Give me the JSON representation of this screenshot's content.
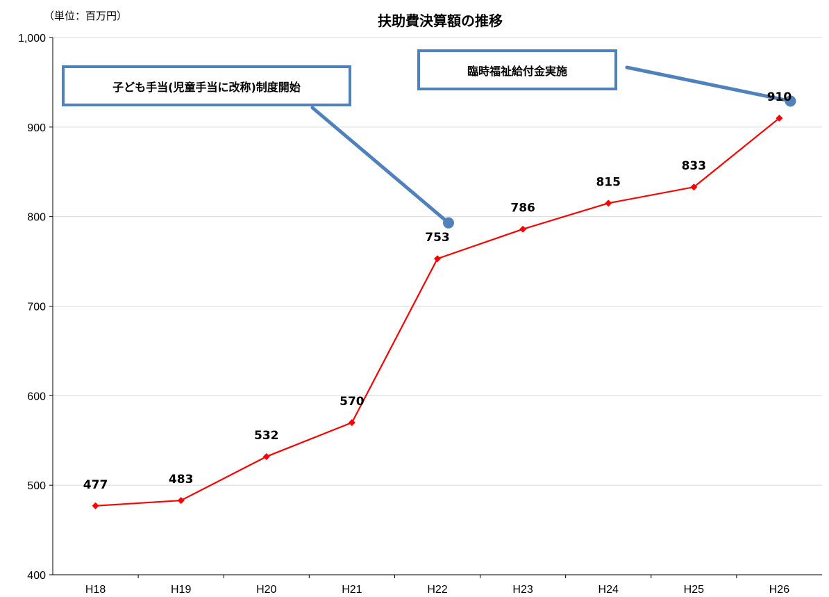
{
  "chart_data": {
    "type": "line",
    "title": "扶助費決算額の推移",
    "unit_label": "（単位：百万円）",
    "categories": [
      "H18",
      "H19",
      "H20",
      "H21",
      "H22",
      "H23",
      "H24",
      "H25",
      "H26"
    ],
    "series": [
      {
        "values": [
          477,
          483,
          532,
          570,
          753,
          786,
          815,
          833,
          910
        ],
        "color": "#ff0000"
      }
    ],
    "data_labels": [
      "477",
      "483",
      "532",
      "570",
      "753",
      "786",
      "815",
      "833",
      "910"
    ],
    "ylim": [
      400,
      1000
    ],
    "yticks": [
      400,
      500,
      600,
      700,
      800,
      900,
      1000
    ],
    "ytick_labels": [
      "400",
      "500",
      "600",
      "700",
      "800",
      "900",
      "1,000"
    ],
    "grid": true,
    "annotations": [
      {
        "text": "子ども手当(児童手当に改称)制度開始",
        "target_x": 4.63,
        "target_y": 793
      },
      {
        "text": "臨時福祉給付金実施",
        "target_x": 8.63,
        "target_y": 929
      }
    ],
    "accent_color": "#4f81bd"
  }
}
